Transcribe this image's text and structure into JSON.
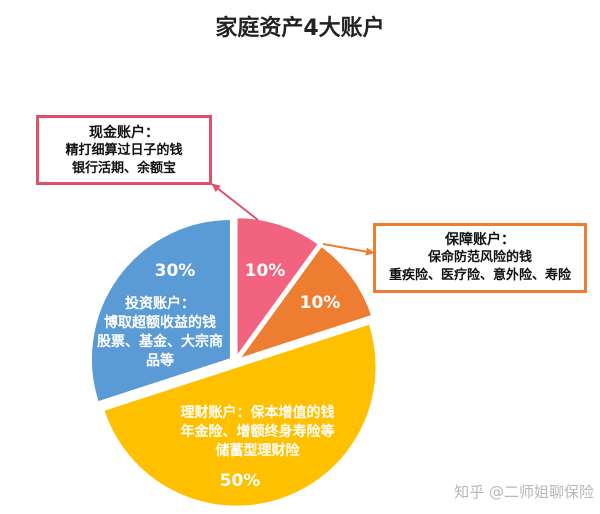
{
  "chart_data": {
    "type": "pie",
    "title": "家庭资产4大账户",
    "slices": [
      {
        "name": "现金账户",
        "value": 10,
        "label": "10%",
        "color": "#f1637e"
      },
      {
        "name": "保障账户",
        "value": 10,
        "label": "10%",
        "color": "#ed7d31"
      },
      {
        "name": "理财账户",
        "value": 50,
        "label": "50%",
        "color": "#ffc000"
      },
      {
        "name": "投资账户",
        "value": 30,
        "label": "30%",
        "color": "#5b9bd5"
      }
    ]
  },
  "callouts": {
    "cash": {
      "title": "现金账户：",
      "line1": "精打细算过日子的钱",
      "line2": "银行活期、余额宝"
    },
    "protection": {
      "title": "保障账户：",
      "line1": "保命防范风险的钱",
      "line2": "重疾险、医疗险、意外险、寿险"
    }
  },
  "slice_text": {
    "investment": {
      "line1": "投资账户：",
      "line2": "博取超额收益的钱",
      "line3": "股票、基金、大宗商",
      "line4": "品等"
    },
    "wealth": {
      "line1": "理财账户：保本增值的钱",
      "line2": "年金险、增额终身寿险等",
      "line3": "储蓄型理财险"
    }
  },
  "watermark": "知乎 @二师姐聊保险"
}
